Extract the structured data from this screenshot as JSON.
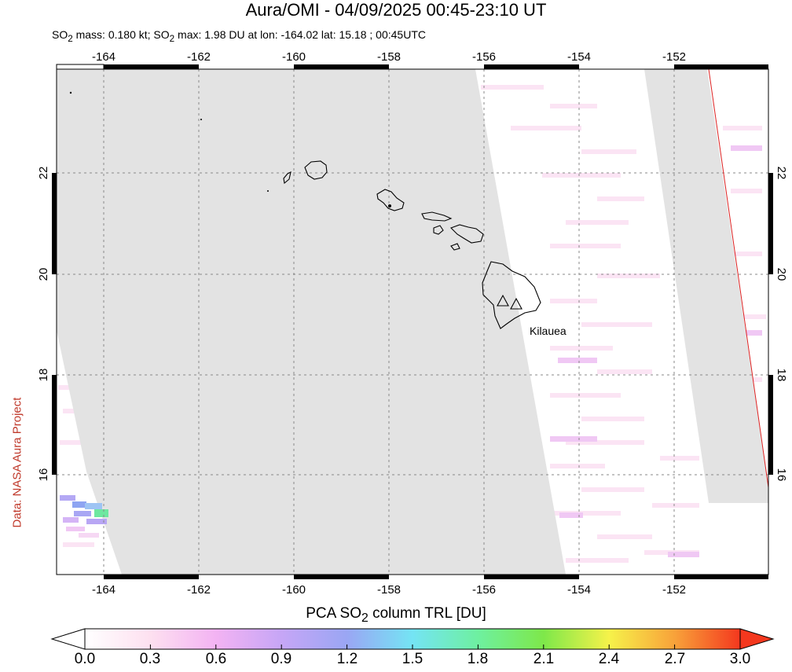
{
  "title": "Aura/OMI - 04/09/2025 00:45-23:10 UT",
  "subtitle": {
    "mass_prefix": "SO",
    "mass_sub": "2",
    "mass_text": " mass: 0.180 kt; SO",
    "max_sub": "2",
    "max_text": " max: 1.98 DU at lon: -164.02 lat: 15.18 ; 00:45UTC"
  },
  "credit": "Data: NASA Aura Project",
  "map": {
    "lon_range": [
      -165,
      -150
    ],
    "lat_range": [
      14,
      24
    ],
    "lon_ticks": [
      "-164",
      "-162",
      "-160",
      "-158",
      "-156",
      "-154",
      "-152"
    ],
    "lat_ticks": [
      "16",
      "18",
      "20",
      "22"
    ],
    "annotation": "Kilauea",
    "background": "#ffffff",
    "swath_color": "#e3e3e3",
    "coast_color": "#000000",
    "edge_line_color": "#dd2222"
  },
  "colorbar": {
    "title_prefix": "PCA SO",
    "title_sub": "2",
    "title_suffix": " column TRL [DU]",
    "ticks": [
      "0.0",
      "0.3",
      "0.6",
      "0.9",
      "1.2",
      "1.5",
      "1.8",
      "2.1",
      "2.4",
      "2.7",
      "3.0"
    ],
    "colors": [
      "#ffffff",
      "#fde0f0",
      "#f3b3f3",
      "#c6a6f6",
      "#9aa6f4",
      "#74e4f4",
      "#6ef0a0",
      "#7ee84a",
      "#f6f24a",
      "#f8a23a",
      "#f4381e"
    ]
  }
}
